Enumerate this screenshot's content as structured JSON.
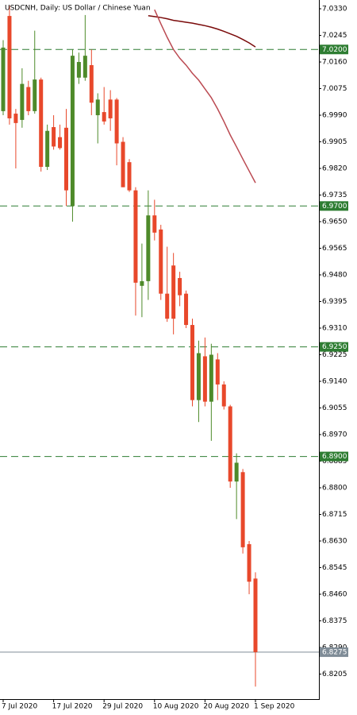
{
  "chart_data": {
    "type": "candlestick",
    "title": "USDCNH, Daily:  US Dollar / Chinese Yuan",
    "categories": [
      "7 Jul 2020",
      null,
      null,
      null,
      null,
      null,
      null,
      null,
      "17 Jul 2020",
      null,
      null,
      null,
      null,
      null,
      null,
      null,
      "29 Jul 2020",
      null,
      null,
      null,
      null,
      null,
      null,
      null,
      "10 Aug 2020",
      null,
      null,
      null,
      null,
      null,
      null,
      null,
      "20 Aug 2020",
      null,
      null,
      null,
      null,
      null,
      null,
      null,
      "1 Sep 2020"
    ],
    "open": [
      7.0003,
      7.0307,
      6.9995,
      6.9975,
      7.008,
      7.0003,
      7.0104,
      6.9825,
      6.9952,
      6.992,
      6.995,
      6.97,
      7.011,
      7.011,
      7.015,
      6.999,
      7.0,
      7.004,
      7.004,
      6.9905,
      6.984,
      6.975,
      6.9445,
      6.946,
      6.967,
      6.9625,
      6.942,
      6.951,
      6.947,
      6.942,
      6.932,
      6.908,
      6.922,
      6.9075,
      6.921,
      6.913,
      6.906,
      6.882,
      6.885,
      6.862,
      6.851
    ],
    "high": [
      7.023,
      7.034,
      7.001,
      7.014,
      7.01,
      7.026,
      7.011,
      6.996,
      6.999,
      6.996,
      7.001,
      7.02,
      7.019,
      7.031,
      7.02,
      7.006,
      7.008,
      7.007,
      7.0045,
      6.992,
      6.985,
      6.976,
      6.958,
      6.975,
      6.972,
      6.964,
      6.957,
      6.955,
      6.949,
      6.943,
      6.934,
      6.927,
      6.928,
      6.926,
      6.923,
      6.914,
      6.9065,
      6.891,
      6.886,
      6.863,
      6.853
    ],
    "low": [
      6.999,
      6.996,
      6.982,
      6.995,
      6.999,
      6.9995,
      6.981,
      6.9815,
      6.988,
      6.988,
      6.97,
      6.965,
      7.009,
      7.01,
      6.999,
      6.99,
      6.996,
      6.994,
      6.983,
      6.976,
      6.9745,
      6.935,
      6.9345,
      6.94,
      6.959,
      6.94,
      6.933,
      6.929,
      6.938,
      6.931,
      6.906,
      6.901,
      6.906,
      6.895,
      6.908,
      6.905,
      6.88,
      6.87,
      6.859,
      6.846,
      6.8165
    ],
    "close": [
      7.0206,
      6.998,
      6.9965,
      7.009,
      7.0003,
      7.0104,
      6.9825,
      6.994,
      6.989,
      6.9885,
      6.975,
      7.018,
      7.016,
      7.018,
      7.003,
      7.004,
      6.997,
      6.998,
      6.99,
      6.976,
      6.975,
      6.9455,
      6.946,
      6.967,
      6.9615,
      6.942,
      6.934,
      6.934,
      6.9415,
      6.932,
      6.908,
      6.923,
      6.9075,
      6.9225,
      6.913,
      6.906,
      6.882,
      6.888,
      6.861,
      6.85,
      6.8275
    ],
    "up_color": "#4e8a2a",
    "down_color": "#e8482b",
    "moving_averages": [
      {
        "color": "#7a0a0a",
        "values": [
          null,
          null,
          null,
          null,
          null,
          null,
          null,
          null,
          null,
          null,
          null,
          null,
          null,
          null,
          null,
          null,
          null,
          null,
          null,
          null,
          null,
          null,
          null,
          7.0308,
          7.0305,
          7.0302,
          7.0298,
          7.0293,
          7.029,
          7.0287,
          7.0284,
          7.028,
          7.0276,
          7.0271,
          7.0265,
          7.0258,
          7.025,
          7.0242,
          7.0232,
          7.0221,
          7.0208
        ]
      },
      {
        "color": "#bb4a52",
        "values": [
          null,
          null,
          null,
          null,
          null,
          null,
          null,
          null,
          null,
          null,
          null,
          null,
          null,
          null,
          null,
          null,
          null,
          null,
          null,
          null,
          null,
          null,
          null,
          null,
          7.0327,
          7.0282,
          7.0239,
          7.02,
          7.0172,
          7.015,
          7.0124,
          7.0102,
          7.0074,
          7.0046,
          7.001,
          6.997,
          6.9927,
          6.9889,
          6.985,
          6.9812,
          6.9774
        ]
      }
    ],
    "levels": [
      {
        "value": 7.02,
        "label": "7.0200"
      },
      {
        "value": 6.97,
        "label": "6.9700"
      },
      {
        "value": 6.925,
        "label": "6.9250"
      },
      {
        "value": 6.89,
        "label": "6.8900"
      }
    ],
    "level_color": "#2e7d32",
    "price_line": {
      "value": 6.8275,
      "label": "6.8275"
    },
    "price_color": "#7f8c97",
    "ylim": [
      6.8125,
      7.0358
    ],
    "yticks": [
      {
        "value": 7.033,
        "label": "7.0330"
      },
      {
        "value": 7.0245,
        "label": "7.0245"
      },
      {
        "value": 7.016,
        "label": "7.0160"
      },
      {
        "value": 7.0075,
        "label": "7.0075"
      },
      {
        "value": 6.999,
        "label": "6.9990"
      },
      {
        "value": 6.9905,
        "label": "6.9905"
      },
      {
        "value": 6.982,
        "label": "6.9820"
      },
      {
        "value": 6.9735,
        "label": "6.9735"
      },
      {
        "value": 6.965,
        "label": "6.9650"
      },
      {
        "value": 6.9565,
        "label": "6.9565"
      },
      {
        "value": 6.948,
        "label": "6.9480"
      },
      {
        "value": 6.9395,
        "label": "6.9395"
      },
      {
        "value": 6.931,
        "label": "6.9310"
      },
      {
        "value": 6.9225,
        "label": "6.9225"
      },
      {
        "value": 6.914,
        "label": "6.9140"
      },
      {
        "value": 6.9055,
        "label": "6.9055"
      },
      {
        "value": 6.897,
        "label": "6.8970"
      },
      {
        "value": 6.8885,
        "label": "6.8885"
      },
      {
        "value": 6.88,
        "label": "6.8800"
      },
      {
        "value": 6.8715,
        "label": "6.8715"
      },
      {
        "value": 6.863,
        "label": "6.8630"
      },
      {
        "value": 6.8545,
        "label": "6.8545"
      },
      {
        "value": 6.846,
        "label": "6.8460"
      },
      {
        "value": 6.8375,
        "label": "6.8375"
      },
      {
        "value": 6.829,
        "label": "6.8290"
      },
      {
        "value": 6.8205,
        "label": "6.8205"
      }
    ]
  }
}
